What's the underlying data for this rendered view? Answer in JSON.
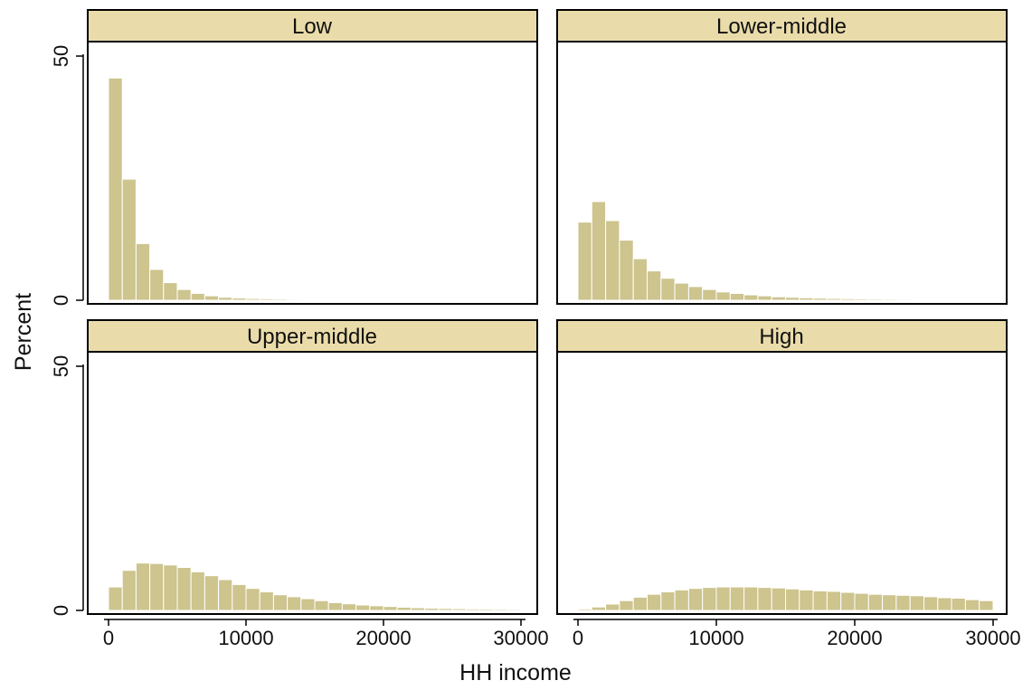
{
  "chart_data": {
    "type": "bar",
    "layout": "2x2 facet grid of histograms",
    "xlabel": "HH income",
    "ylabel": "Percent",
    "xlim": [
      0,
      30000
    ],
    "ylim": [
      0,
      50
    ],
    "x_ticks": [
      0,
      10000,
      20000,
      30000
    ],
    "x_tick_labels": [
      "0",
      "10000",
      "20000",
      "30000"
    ],
    "y_ticks": [
      0,
      50
    ],
    "y_tick_labels": [
      "0",
      "50"
    ],
    "bin_width": 1000,
    "bin_starts": [
      0,
      1000,
      2000,
      3000,
      4000,
      5000,
      6000,
      7000,
      8000,
      9000,
      10000,
      11000,
      12000,
      13000,
      14000,
      15000,
      16000,
      17000,
      18000,
      19000,
      20000,
      21000,
      22000,
      23000,
      24000,
      25000,
      26000,
      27000,
      28000,
      29000
    ],
    "bar_color": "#cdc48e",
    "strip_color": "#eadcaa",
    "grid": false,
    "panels": [
      {
        "name": "Low",
        "values": [
          45.5,
          24.8,
          11.6,
          6.3,
          3.6,
          2.2,
          1.4,
          0.9,
          0.6,
          0.45,
          0.35,
          0.3,
          0.25,
          0.2,
          0.18,
          0.16,
          0.15,
          0.14,
          0.13,
          0.12,
          0.12,
          0.11,
          0.11,
          0.1,
          0.1,
          0.1,
          0.1,
          0.1,
          0.1,
          0.1
        ]
      },
      {
        "name": "Lower-middle",
        "values": [
          16.0,
          20.2,
          16.3,
          12.3,
          8.5,
          6.0,
          4.5,
          3.5,
          2.8,
          2.2,
          1.7,
          1.4,
          1.1,
          0.9,
          0.7,
          0.6,
          0.5,
          0.42,
          0.36,
          0.32,
          0.28,
          0.25,
          0.22,
          0.2,
          0.18,
          0.16,
          0.15,
          0.14,
          0.13,
          0.12
        ]
      },
      {
        "name": "Upper-middle",
        "values": [
          4.8,
          8.2,
          9.7,
          9.6,
          9.3,
          8.8,
          7.9,
          7.1,
          6.3,
          5.3,
          4.5,
          3.8,
          3.2,
          2.8,
          2.4,
          2.0,
          1.6,
          1.35,
          1.1,
          0.95,
          0.8,
          0.65,
          0.55,
          0.45,
          0.4,
          0.35,
          0.3,
          0.28,
          0.25,
          0.22
        ]
      },
      {
        "name": "High",
        "values": [
          0.3,
          0.7,
          1.3,
          2.0,
          2.7,
          3.3,
          3.8,
          4.2,
          4.5,
          4.7,
          4.8,
          4.8,
          4.8,
          4.7,
          4.6,
          4.4,
          4.2,
          4.0,
          3.9,
          3.7,
          3.5,
          3.3,
          3.2,
          3.1,
          3.0,
          2.8,
          2.6,
          2.5,
          2.2,
          2.0
        ]
      }
    ]
  }
}
